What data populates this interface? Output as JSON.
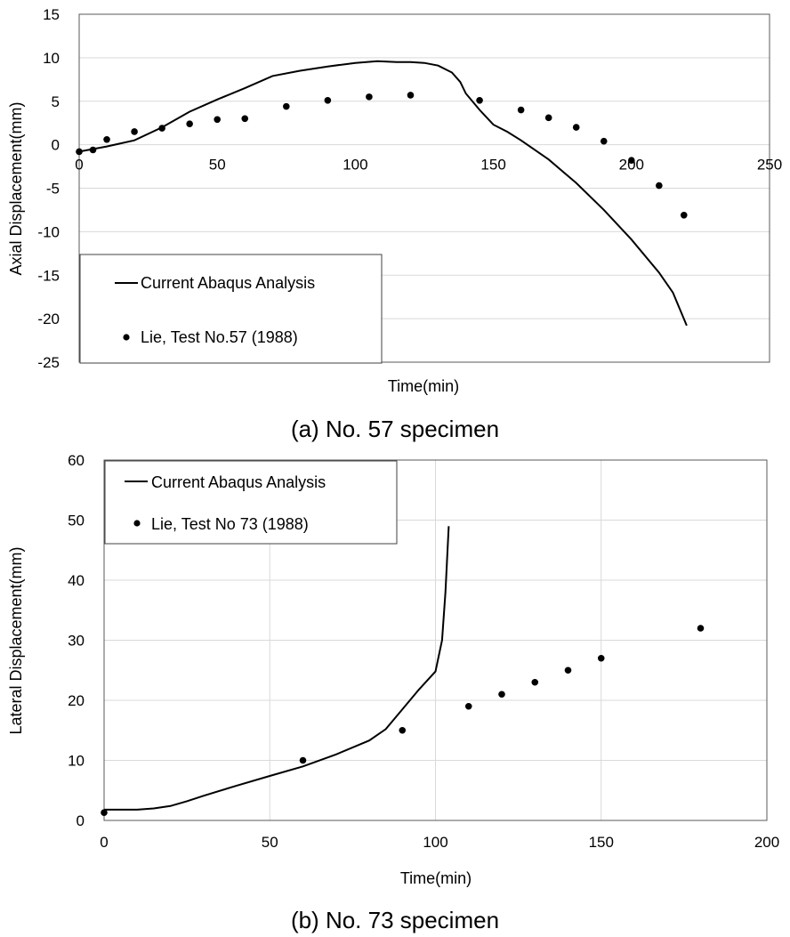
{
  "chart_data": [
    {
      "type": "line",
      "xlabel": "Time(min)",
      "ylabel": "Axial Displacement(mm)",
      "caption": "(a) No. 57 specimen",
      "xlim": [
        0,
        250
      ],
      "ylim": [
        -25,
        15
      ],
      "xticks": [
        0,
        50,
        100,
        150,
        200,
        250
      ],
      "yticks": [
        15,
        10,
        5,
        0,
        -5,
        -10,
        -15,
        -20,
        -25
      ],
      "grid": "horizontal",
      "legend_position": "bottom-left",
      "series": [
        {
          "name": "Current Abaqus Analysis",
          "style": "line",
          "x": [
            0,
            10,
            20,
            30,
            40,
            50,
            60,
            70,
            80,
            90,
            100,
            108,
            115,
            120,
            125,
            130,
            135,
            138,
            140,
            145,
            150,
            155,
            160,
            170,
            180,
            190,
            200,
            210,
            215,
            220
          ],
          "y": [
            -0.8,
            -0.2,
            0.5,
            2.0,
            3.8,
            5.2,
            6.5,
            7.9,
            8.5,
            9.0,
            9.4,
            9.6,
            9.5,
            9.5,
            9.4,
            9.1,
            8.3,
            7.2,
            5.9,
            4.0,
            2.3,
            1.5,
            0.5,
            -1.7,
            -4.4,
            -7.5,
            -10.9,
            -14.7,
            -17.0,
            -20.8
          ]
        },
        {
          "name": "Lie, Test No.57 (1988)",
          "style": "marker",
          "x": [
            0,
            5,
            10,
            20,
            30,
            40,
            50,
            60,
            75,
            90,
            105,
            120,
            145,
            160,
            170,
            180,
            190,
            200,
            210,
            219
          ],
          "y": [
            -0.8,
            -0.6,
            0.6,
            1.5,
            1.9,
            2.4,
            2.9,
            3.0,
            4.4,
            5.1,
            5.5,
            5.7,
            5.1,
            4.0,
            3.1,
            2.0,
            0.4,
            -1.8,
            -4.7,
            -8.1
          ]
        }
      ]
    },
    {
      "type": "line",
      "xlabel": "Time(min)",
      "ylabel": "Lateral Displacement(mm)",
      "caption": "(b) No. 73 specimen",
      "xlim": [
        0,
        200
      ],
      "ylim": [
        0,
        60
      ],
      "xticks": [
        0,
        50,
        100,
        150,
        200
      ],
      "yticks": [
        60,
        50,
        40,
        30,
        20,
        10,
        0
      ],
      "grid": "both",
      "legend_position": "top-left",
      "series": [
        {
          "name": "Current Abaqus Analysis",
          "style": "line",
          "x": [
            0,
            10,
            15,
            20,
            25,
            30,
            40,
            50,
            60,
            70,
            80,
            85,
            90,
            95,
            100,
            102,
            103,
            104
          ],
          "y": [
            1.8,
            1.8,
            2.0,
            2.4,
            3.2,
            4.1,
            5.8,
            7.4,
            9.0,
            11.0,
            13.3,
            15.2,
            18.5,
            21.8,
            24.8,
            30.0,
            38.0,
            49.0
          ]
        },
        {
          "name": "Lie, Test No 73 (1988)",
          "style": "marker",
          "x": [
            0,
            60,
            90,
            110,
            120,
            130,
            140,
            150,
            180
          ],
          "y": [
            1.3,
            10.0,
            15.0,
            19.0,
            21.0,
            23.0,
            25.0,
            27.0,
            32.0
          ]
        }
      ]
    }
  ]
}
